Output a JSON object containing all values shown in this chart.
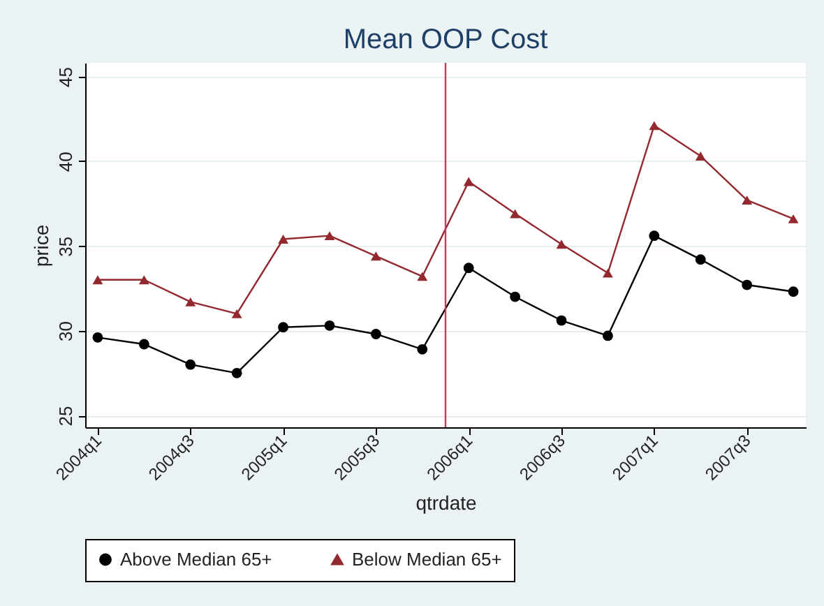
{
  "chart_data": {
    "type": "line",
    "title": "Mean OOP Cost",
    "xlabel": "qtrdate",
    "ylabel": "price",
    "categories": [
      "2004q1",
      null,
      "2004q3",
      null,
      "2005q1",
      null,
      "2005q3",
      null,
      "2006q1",
      null,
      "2006q3",
      null,
      "2007q1",
      null,
      "2007q3",
      null
    ],
    "series": [
      {
        "name": "Above Median 65+",
        "color": "#000000",
        "marker": "circle",
        "values": [
          29.6,
          29.2,
          28.0,
          27.5,
          30.2,
          30.3,
          29.8,
          28.9,
          33.7,
          32.0,
          30.6,
          29.7,
          35.6,
          34.2,
          32.7,
          32.3
        ]
      },
      {
        "name": "Below Median 65+",
        "color": "#93282f",
        "marker": "triangle",
        "values": [
          33.0,
          33.0,
          31.7,
          31.0,
          35.4,
          35.6,
          34.4,
          33.2,
          38.8,
          36.9,
          35.1,
          33.4,
          42.1,
          40.3,
          37.7,
          36.6
        ]
      }
    ],
    "ylim": [
      24.3,
      45.8
    ],
    "yticks": [
      25,
      30,
      35,
      40,
      45
    ],
    "ref_lines": [
      {
        "axis": "x",
        "value": "2006q1",
        "color": "#c8385a"
      }
    ],
    "grid": "y",
    "legend": "bottom",
    "line_style": "solid"
  }
}
